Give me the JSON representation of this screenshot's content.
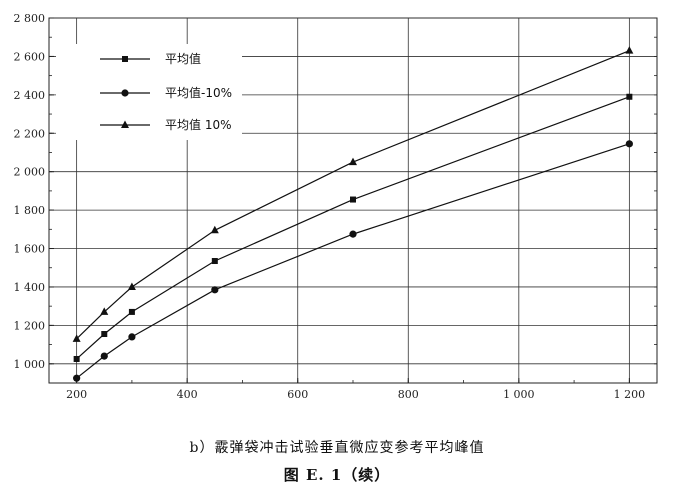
{
  "chart_data": {
    "type": "line",
    "x": [
      200,
      250,
      300,
      450,
      700,
      1200
    ],
    "series": [
      {
        "name": "平均值",
        "marker": "square",
        "values": [
          1025,
          1155,
          1270,
          1535,
          1855,
          2390
        ]
      },
      {
        "name": "平均值-10%",
        "marker": "circle",
        "values": [
          925,
          1040,
          1140,
          1385,
          1675,
          2145
        ]
      },
      {
        "name": "平均值 10%",
        "marker": "triangle",
        "values": [
          1130,
          1270,
          1400,
          1695,
          2050,
          2630
        ]
      }
    ],
    "xlim": [
      150,
      1250
    ],
    "ylim": [
      900,
      2800
    ],
    "x_ticks": [
      200,
      400,
      600,
      800,
      1000,
      1200
    ],
    "x_tick_labels": [
      "200",
      "400",
      "600",
      "800",
      "1 000",
      "1 200"
    ],
    "y_ticks": [
      1000,
      1200,
      1400,
      1600,
      1800,
      2000,
      2200,
      2400,
      2600,
      2800
    ],
    "y_tick_labels": [
      "1 000",
      "1 200",
      "1 400",
      "1 600",
      "1 800",
      "2 000",
      "2 200",
      "2 400",
      "2 600",
      "2 800"
    ],
    "grid": true,
    "legend_position": "top-left",
    "line_color": "#111111"
  },
  "subcaption": "b）霰弹袋冲击试验垂直微应变参考平均峰值",
  "figure_caption": "图 E. 1（续）"
}
